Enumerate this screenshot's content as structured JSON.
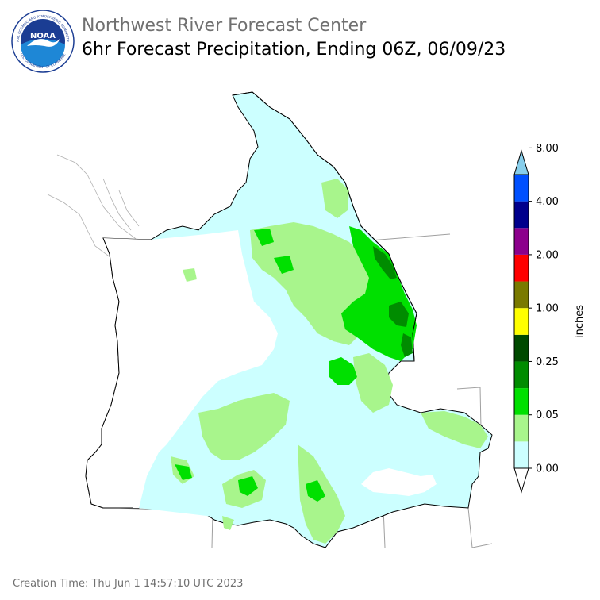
{
  "header": {
    "organization": "Northwest River Forecast Center",
    "product": "6hr Forecast Precipitation, Ending 06Z, 06/09/23"
  },
  "logo": {
    "text": "NOAA",
    "ring_text_top": "NATIONAL OCEANIC AND ATMOSPHERIC ADMINISTRATION",
    "ring_text_bottom": "U.S. DEPARTMENT OF COMMERCE",
    "colors": {
      "sky": "#1b3d93",
      "sea": "#1e87d6",
      "bird": "#ffffff"
    }
  },
  "colorbar": {
    "unit_label": "inches",
    "tick_labels": [
      "0.00",
      "0.05",
      "0.25",
      "1.00",
      "2.00",
      "4.00",
      "8.00"
    ],
    "bins": [
      {
        "color": "#ffffff"
      },
      {
        "color": "#ccffff"
      },
      {
        "color": "#a8f58c"
      },
      {
        "color": "#00e000"
      },
      {
        "color": "#008c00"
      },
      {
        "color": "#004a00"
      },
      {
        "color": "#ffff00"
      },
      {
        "color": "#7a7a00"
      },
      {
        "color": "#ff0000"
      },
      {
        "color": "#8c008c"
      },
      {
        "color": "#00008c"
      },
      {
        "color": "#0050ff"
      },
      {
        "color": "#87ceeb"
      }
    ]
  },
  "map_colors": {
    "light": "#ccffff",
    "moderate": "#a8f58c",
    "heavy": "#00e000",
    "heavier": "#008c00",
    "outline": "#000000",
    "state_lines": "#a0a0a0"
  },
  "footer": {
    "creation_time": "Creation Time: Thu Jun 1 14:57:10 UTC 2023"
  }
}
